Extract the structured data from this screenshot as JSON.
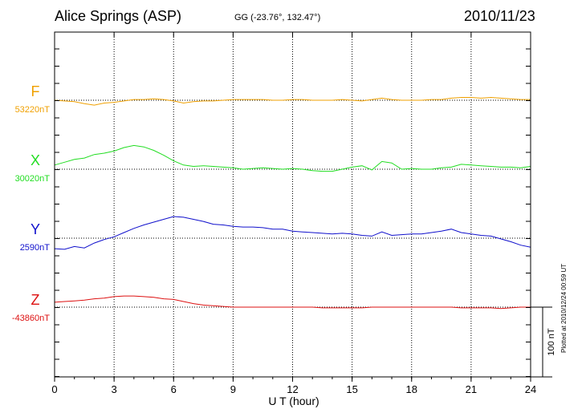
{
  "header": {
    "station": "Alice Springs (ASP)",
    "coordinates": "GG (-23.76°, 132.47°)",
    "date": "2010/11/23"
  },
  "footer": {
    "plotted_note": "Plotted at 2010/12/24 00:59 UT"
  },
  "chart_data": {
    "type": "line",
    "xlabel": "U T (hour)",
    "xlim": [
      0,
      24
    ],
    "x_ticks": [
      "0",
      "3",
      "6",
      "9",
      "12",
      "15",
      "18",
      "21",
      "24"
    ],
    "grid": true,
    "scale_bar": {
      "label": "100 nT",
      "value": 100
    },
    "series": [
      {
        "name": "F",
        "baseline_label": "53220nT",
        "baseline": 53220,
        "color": "#f0a000",
        "x": [
          0,
          0.5,
          1,
          1.5,
          2,
          2.5,
          3,
          3.5,
          4,
          4.5,
          5,
          5.5,
          6,
          6.5,
          7,
          7.5,
          8,
          8.5,
          9,
          9.5,
          10,
          10.5,
          11,
          11.5,
          12,
          12.5,
          13,
          13.5,
          14,
          14.5,
          15,
          15.5,
          16,
          16.5,
          17,
          17.5,
          18,
          18.5,
          19,
          19.5,
          20,
          20.5,
          21,
          21.5,
          22,
          22.5,
          23,
          23.5,
          24
        ],
        "y": [
          53220,
          53219,
          53218,
          53215,
          53213,
          53216,
          53217,
          53219,
          53221,
          53221,
          53222,
          53221,
          53219,
          53216,
          53218,
          53219,
          53219,
          53220,
          53221,
          53221,
          53221,
          53221,
          53220,
          53220,
          53221,
          53221,
          53220,
          53220,
          53220,
          53221,
          53220,
          53219,
          53221,
          53223,
          53221,
          53220,
          53220,
          53220,
          53221,
          53221,
          53223,
          53224,
          53224,
          53223,
          53224,
          53223,
          53222,
          53221,
          53221
        ]
      },
      {
        "name": "X",
        "baseline_label": "30020nT",
        "baseline": 30020,
        "color": "#22dd22",
        "x": [
          0,
          0.5,
          1,
          1.5,
          2,
          2.5,
          3,
          3.5,
          4,
          4.5,
          5,
          5.5,
          6,
          6.5,
          7,
          7.5,
          8,
          8.5,
          9,
          9.5,
          10,
          10.5,
          11,
          11.5,
          12,
          12.5,
          13,
          13.5,
          14,
          14.5,
          15,
          15.5,
          16,
          16.5,
          17,
          17.5,
          18,
          18.5,
          19,
          19.5,
          20,
          20.5,
          21,
          21.5,
          22,
          22.5,
          23,
          23.5,
          24
        ],
        "y": [
          30026,
          30030,
          30034,
          30036,
          30041,
          30043,
          30046,
          30051,
          30054,
          30052,
          30047,
          30040,
          30032,
          30026,
          30024,
          30025,
          30024,
          30023,
          30022,
          30020,
          30021,
          30022,
          30021,
          30020,
          30021,
          30020,
          30018,
          30017,
          30017,
          30020,
          30023,
          30025,
          30019,
          30031,
          30029,
          30020,
          30021,
          30020,
          30020,
          30022,
          30023,
          30027,
          30026,
          30025,
          30024,
          30023,
          30023,
          30022,
          30024
        ]
      },
      {
        "name": "Y",
        "baseline_label": "2590nT",
        "baseline": 2590,
        "color": "#1010cc",
        "x": [
          0,
          0.5,
          1,
          1.5,
          2,
          2.5,
          3,
          3.5,
          4,
          4.5,
          5,
          5.5,
          6,
          6.5,
          7,
          7.5,
          8,
          8.5,
          9,
          9.5,
          10,
          10.5,
          11,
          11.5,
          12,
          12.5,
          13,
          13.5,
          14,
          14.5,
          15,
          15.5,
          16,
          16.5,
          17,
          17.5,
          18,
          18.5,
          19,
          19.5,
          20,
          20.5,
          21,
          21.5,
          22,
          22.5,
          23,
          23.5,
          24
        ],
        "y": [
          2575,
          2574,
          2578,
          2576,
          2583,
          2588,
          2592,
          2598,
          2604,
          2609,
          2613,
          2617,
          2621,
          2620,
          2617,
          2614,
          2610,
          2609,
          2607,
          2606,
          2606,
          2605,
          2603,
          2603,
          2600,
          2599,
          2598,
          2597,
          2596,
          2597,
          2596,
          2594,
          2593,
          2599,
          2594,
          2595,
          2596,
          2596,
          2598,
          2600,
          2603,
          2598,
          2596,
          2594,
          2593,
          2589,
          2585,
          2580,
          2577
        ]
      },
      {
        "name": "Z",
        "baseline_label": "-43860nT",
        "baseline": -43860,
        "color": "#dd1111",
        "x": [
          0,
          0.5,
          1,
          1.5,
          2,
          2.5,
          3,
          3.5,
          4,
          4.5,
          5,
          5.5,
          6,
          6.5,
          7,
          7.5,
          8,
          8.5,
          9,
          9.5,
          10,
          10.5,
          11,
          11.5,
          12,
          12.5,
          13,
          13.5,
          14,
          14.5,
          15,
          15.5,
          16,
          16.5,
          17,
          17.5,
          18,
          18.5,
          19,
          19.5,
          20,
          20.5,
          21,
          21.5,
          22,
          22.5,
          23,
          23.5,
          24
        ],
        "y": [
          -43853,
          -43852,
          -43851,
          -43850,
          -43848,
          -43847,
          -43845,
          -43844,
          -43844,
          -43845,
          -43846,
          -43848,
          -43849,
          -43852,
          -43855,
          -43857,
          -43858,
          -43859,
          -43860,
          -43860,
          -43860,
          -43860,
          -43860,
          -43860,
          -43860,
          -43860,
          -43860,
          -43861,
          -43861,
          -43861,
          -43861,
          -43861,
          -43860,
          -43860,
          -43860,
          -43860,
          -43860,
          -43860,
          -43860,
          -43860,
          -43860,
          -43861,
          -43861,
          -43861,
          -43861,
          -43862,
          -43861,
          -43860,
          -43860
        ]
      }
    ]
  }
}
